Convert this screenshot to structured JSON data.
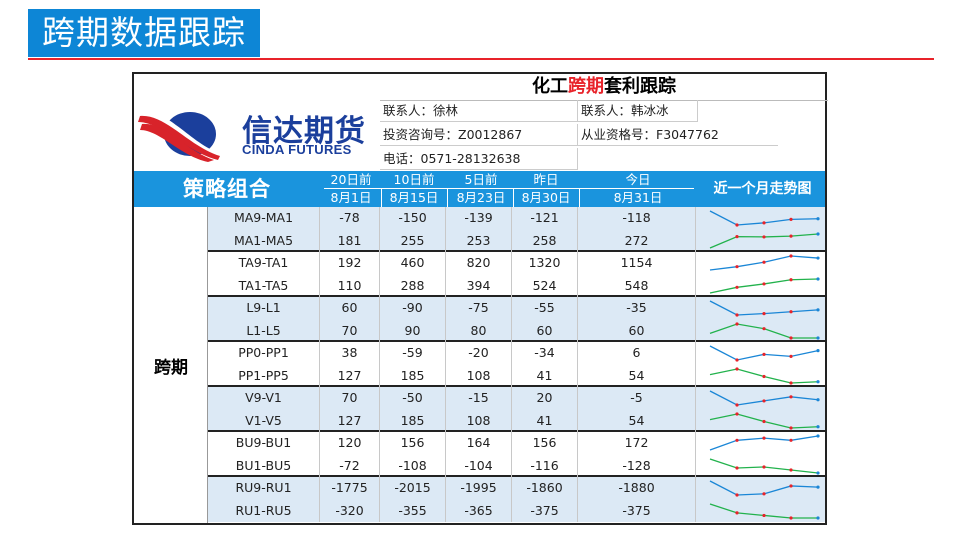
{
  "slide_title": "跨期数据跟踪",
  "sheet": {
    "title_prefix": "化工",
    "title_highlight": "跨期",
    "title_suffix": "套利跟踪",
    "logo_cn": "信达期货",
    "logo_en": "CINDA FUTURES",
    "contact1": "联系人：徐林",
    "contact2": "联系人：韩冰冰",
    "license1": "投资咨询号：Z0012867",
    "license2": "从业资格号：F3047762",
    "phone": "电话：0571-28132638"
  },
  "header": {
    "strategy": "策略组合",
    "cols": [
      {
        "top": "20日前",
        "date": "8月1日"
      },
      {
        "top": "10日前",
        "date": "8月15日"
      },
      {
        "top": "5日前",
        "date": "8月23日"
      },
      {
        "top": "昨日",
        "date": "8月30日"
      },
      {
        "top": "今日",
        "date": "8月31日"
      }
    ],
    "trend": "近一个月走势图"
  },
  "category": "跨期",
  "colors": {
    "red": "#e8232a",
    "blue": "#1a94dd",
    "spark_blue": "#1a86d6",
    "spark_green": "#22b24c"
  },
  "rows": [
    {
      "name": "MA9-MA1",
      "v": [
        "-78",
        "-150",
        "-139",
        "-121",
        "-118"
      ],
      "shade": true
    },
    {
      "name": "MA1-MA5",
      "v": [
        "181",
        "255",
        "253",
        "258",
        "272"
      ],
      "shade": true
    },
    {
      "name": "TA9-TA1",
      "v": [
        "192",
        "460",
        "820",
        "1320",
        "1154"
      ],
      "shade": false
    },
    {
      "name": "TA1-TA5",
      "v": [
        "110",
        "288",
        "394",
        "524",
        "548"
      ],
      "shade": false
    },
    {
      "name": "L9-L1",
      "v": [
        "60",
        "-90",
        "-75",
        "-55",
        "-35"
      ],
      "shade": true
    },
    {
      "name": "L1-L5",
      "v": [
        "70",
        "90",
        "80",
        "60",
        "60"
      ],
      "shade": true
    },
    {
      "name": "PP0-PP1",
      "v": [
        "38",
        "-59",
        "-20",
        "-34",
        "6"
      ],
      "shade": false
    },
    {
      "name": "PP1-PP5",
      "v": [
        "127",
        "185",
        "108",
        "41",
        "54"
      ],
      "shade": false
    },
    {
      "name": "V9-V1",
      "v": [
        "70",
        "-50",
        "-15",
        "20",
        "-5"
      ],
      "shade": true
    },
    {
      "name": "V1-V5",
      "v": [
        "127",
        "185",
        "108",
        "41",
        "54"
      ],
      "shade": true
    },
    {
      "name": "BU9-BU1",
      "v": [
        "120",
        "156",
        "164",
        "156",
        "172"
      ],
      "shade": false
    },
    {
      "name": "BU1-BU5",
      "v": [
        "-72",
        "-108",
        "-104",
        "-116",
        "-128"
      ],
      "shade": false
    },
    {
      "name": "RU9-RU1",
      "v": [
        "-1775",
        "-2015",
        "-1995",
        "-1860",
        "-1880"
      ],
      "shade": true
    },
    {
      "name": "RU1-RU5",
      "v": [
        "-320",
        "-355",
        "-365",
        "-375",
        "-375"
      ],
      "shade": true
    }
  ]
}
